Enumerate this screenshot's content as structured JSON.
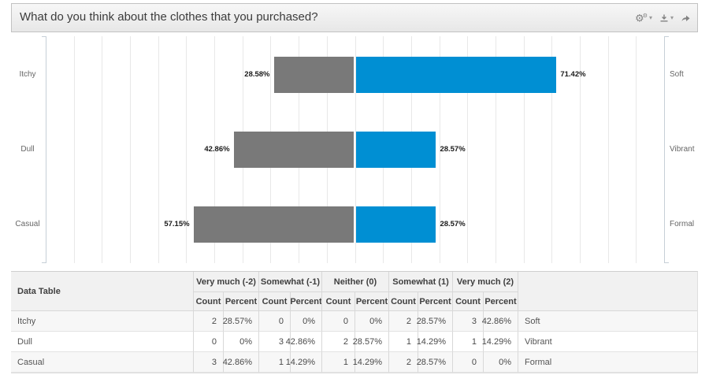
{
  "widget": {
    "title": "What do you think about the clothes that you purchased?",
    "toolbar": {
      "icons": [
        "gears-icon",
        "download-icon",
        "share-icon"
      ],
      "caret": "▾",
      "gear_glyph": "⚙"
    }
  },
  "chart_data": {
    "type": "bar",
    "subtype": "diverging-horizontal",
    "title": "What do you think about the clothes that you purchased?",
    "categories_left": [
      "Itchy",
      "Dull",
      "Casual"
    ],
    "categories_right": [
      "Soft",
      "Vibrant",
      "Formal"
    ],
    "series": [
      {
        "name": "negative-side",
        "color": "#797979",
        "values": [
          28.58,
          42.86,
          57.15
        ],
        "labels": [
          "28.58%",
          "42.86%",
          "57.15%"
        ]
      },
      {
        "name": "positive-side",
        "color": "#008fd3",
        "values": [
          71.42,
          28.57,
          28.57
        ],
        "labels": [
          "71.42%",
          "28.57%",
          "28.57%"
        ]
      }
    ],
    "axis": {
      "grid": true,
      "gridline_interval_pct": 10,
      "max_each_side_pct": 110,
      "center_pct": 0
    },
    "legend": "none"
  },
  "table": {
    "corner_label": "Data Table",
    "groups": [
      "Very much (-2)",
      "Somewhat (-1)",
      "Neither (0)",
      "Somewhat (1)",
      "Very much (2)"
    ],
    "subheaders": [
      "Count",
      "Percent"
    ],
    "rows": [
      {
        "label": "Itchy",
        "cells": [
          "2",
          "28.57%",
          "0",
          "0%",
          "0",
          "0%",
          "2",
          "28.57%",
          "3",
          "42.86%"
        ],
        "right_label": "Soft"
      },
      {
        "label": "Dull",
        "cells": [
          "0",
          "0%",
          "3",
          "42.86%",
          "2",
          "28.57%",
          "1",
          "14.29%",
          "1",
          "14.29%"
        ],
        "right_label": "Vibrant"
      },
      {
        "label": "Casual",
        "cells": [
          "3",
          "42.86%",
          "1",
          "14.29%",
          "1",
          "14.29%",
          "2",
          "28.57%",
          "0",
          "0%"
        ],
        "right_label": "Formal"
      }
    ]
  }
}
